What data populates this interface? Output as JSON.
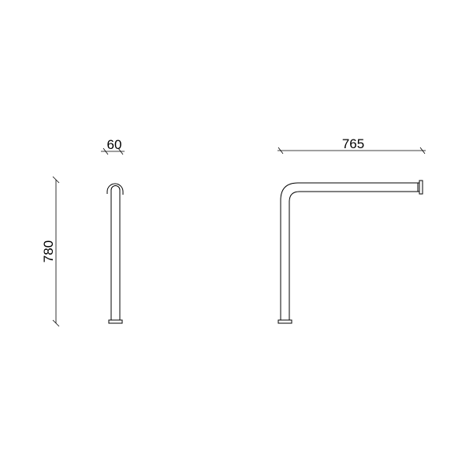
{
  "dimensions": {
    "depth": "60",
    "width": "765",
    "height": "780"
  },
  "colors": {
    "background": "#ffffff",
    "stroke": "#000000"
  }
}
